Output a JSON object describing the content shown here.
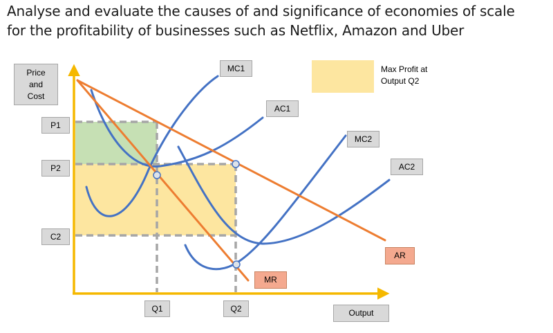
{
  "title_lines": [
    "Analyse and evaluate the causes of and significance of economies of scale",
    "for the profitability of businesses such as Netflix, Amazon and Uber"
  ],
  "axes": {
    "y_label": [
      "Price",
      "and",
      "Cost"
    ],
    "x_label": "Output"
  },
  "y_ticks": {
    "p1": "P1",
    "p2": "P2",
    "c2": "C2"
  },
  "x_ticks": {
    "q1": "Q1",
    "q2": "Q2"
  },
  "curves": {
    "mc1": "MC1",
    "ac1": "AC1",
    "mc2": "MC2",
    "ac2": "AC2",
    "ar": "AR",
    "mr": "MR"
  },
  "legend": {
    "lines": [
      "Max Profit at",
      "Output Q2"
    ],
    "color": "#fde6a0"
  },
  "colors": {
    "axis": "#f5b800",
    "cost_curves": "#4472c4",
    "revenue_curves": "#ed7d31",
    "profit_q1": "#c6e0b4",
    "profit_q2": "#fde6a0",
    "guide_lines": "#a6a6a6"
  }
}
